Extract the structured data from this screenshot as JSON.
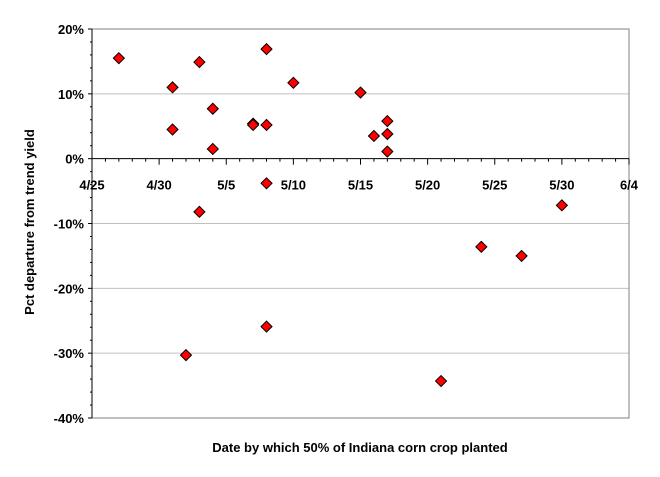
{
  "chart_data": {
    "type": "scatter",
    "xlabel": "Date by which 50% of Indiana corn crop planted",
    "ylabel": "Pct departure from trend yield",
    "x_tick_labels": [
      "4/25",
      "4/30",
      "5/5",
      "5/10",
      "5/15",
      "5/20",
      "5/25",
      "5/30",
      "6/4"
    ],
    "y_tick_labels": [
      "20%",
      "10%",
      "0%",
      "-10%",
      "-20%",
      "-30%",
      "-40%"
    ],
    "xlim": [
      "4/25",
      "6/4"
    ],
    "ylim": [
      -40,
      20
    ],
    "grid": "horizontal",
    "legend": "none",
    "marker": "diamond",
    "marker_color": "#ff0000",
    "points": [
      {
        "x": "4/27",
        "y": 15.5
      },
      {
        "x": "5/1",
        "y": 11.0
      },
      {
        "x": "5/1",
        "y": 4.5
      },
      {
        "x": "5/2",
        "y": -30.3
      },
      {
        "x": "5/3",
        "y": 14.9
      },
      {
        "x": "5/3",
        "y": -8.2
      },
      {
        "x": "5/4",
        "y": 7.7
      },
      {
        "x": "5/4",
        "y": 1.5
      },
      {
        "x": "5/7",
        "y": 5.4
      },
      {
        "x": "5/7",
        "y": 5.2
      },
      {
        "x": "5/8",
        "y": 16.9
      },
      {
        "x": "5/8",
        "y": 5.2
      },
      {
        "x": "5/8",
        "y": -3.8
      },
      {
        "x": "5/8",
        "y": -25.9
      },
      {
        "x": "5/10",
        "y": 11.7
      },
      {
        "x": "5/15",
        "y": 10.2
      },
      {
        "x": "5/16",
        "y": 3.5
      },
      {
        "x": "5/17",
        "y": 5.8
      },
      {
        "x": "5/17",
        "y": 3.8
      },
      {
        "x": "5/17",
        "y": 1.1
      },
      {
        "x": "5/21",
        "y": -34.3
      },
      {
        "x": "5/24",
        "y": -13.6
      },
      {
        "x": "5/27",
        "y": -15.0
      },
      {
        "x": "5/30",
        "y": -7.2
      }
    ]
  }
}
